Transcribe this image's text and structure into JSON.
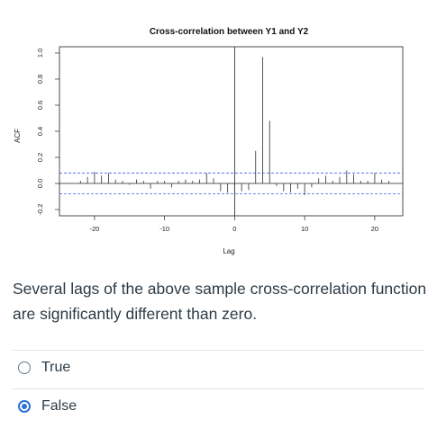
{
  "question": {
    "text": "Several lags of the above sample cross-correlation function are significantly different than zero."
  },
  "options": [
    {
      "label": "True",
      "selected": false
    },
    {
      "label": "False",
      "selected": true
    }
  ],
  "colors": {
    "accent": "#2b72d7",
    "confidence_band": "#4a5cf0",
    "text": "#2d3b45"
  },
  "chart_data": {
    "type": "line",
    "title": "Cross-correlation between Y1 and Y2",
    "xlabel": "Lag",
    "ylabel": "ACF",
    "xlim": [
      -25,
      24
    ],
    "ylim": [
      -0.2,
      1.0
    ],
    "x_ticks": [
      -20,
      -10,
      0,
      10,
      20
    ],
    "x_tick_labels": [
      "-20",
      "-10",
      "0",
      "10",
      "20"
    ],
    "y_ticks": [
      -0.2,
      0.0,
      0.2,
      0.4,
      0.6,
      0.8,
      1.0
    ],
    "y_tick_labels": [
      "-0.2",
      "0.0",
      "0.2",
      "0.4",
      "0.6",
      "0.8",
      "1.0"
    ],
    "confidence_bounds": [
      0.08,
      -0.08
    ],
    "lags": [
      -22,
      -21,
      -20,
      -19,
      -18,
      -17,
      -16,
      -15,
      -14,
      -13,
      -12,
      -11,
      -10,
      -9,
      -8,
      -7,
      -6,
      -5,
      -4,
      -3,
      -2,
      -1,
      0,
      1,
      2,
      3,
      4,
      5,
      6,
      7,
      8,
      9,
      10,
      11,
      12,
      13,
      14,
      15,
      16,
      17,
      18,
      19,
      20,
      21,
      22
    ],
    "acf": [
      0.02,
      0.05,
      0.09,
      0.06,
      0.08,
      0.03,
      0.02,
      -0.01,
      0.03,
      0.02,
      -0.04,
      0.02,
      0.02,
      -0.03,
      0.02,
      0.03,
      0.02,
      0.03,
      0.08,
      0.04,
      -0.06,
      -0.07,
      -0.07,
      -0.06,
      -0.05,
      0.25,
      0.97,
      0.48,
      -0.02,
      -0.06,
      -0.07,
      -0.04,
      -0.09,
      -0.03,
      0.04,
      0.06,
      0.02,
      0.05,
      0.1,
      0.07,
      0.02,
      0.02,
      0.08,
      0.03,
      0.02
    ]
  }
}
